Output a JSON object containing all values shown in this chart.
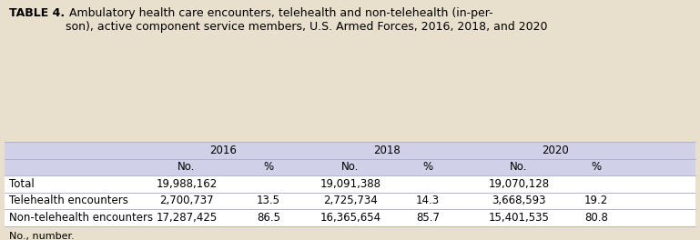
{
  "title_bold": "TABLE 4.",
  "title_rest": " Ambulatory health care encounters, telehealth and non-telehealth (in-per-\nson), active component service members, U.S. Armed Forces, 2016, 2018, and 2020",
  "background_color": "#e8e0cc",
  "table_header_bg": "#d0d0e8",
  "year_headers": [
    "2016",
    "2018",
    "2020"
  ],
  "sub_headers": [
    "No.",
    "%",
    "No.",
    "%",
    "No.",
    "%"
  ],
  "rows": [
    {
      "label": "Total",
      "values": [
        "19,988,162",
        "",
        "19,091,388",
        "",
        "19,070,128",
        ""
      ]
    },
    {
      "label": "Telehealth encounters",
      "values": [
        "2,700,737",
        "13.5",
        "2,725,734",
        "14.3",
        "3,668,593",
        "19.2"
      ]
    },
    {
      "label": "Non-telehealth encounters",
      "values": [
        "17,287,425",
        "86.5",
        "16,365,654",
        "85.7",
        "15,401,535",
        "80.8"
      ]
    }
  ],
  "footnote": "No., number.",
  "font_size_title": 9.0,
  "font_size_table": 8.5,
  "font_size_footnote": 8.0,
  "fig_width": 7.69,
  "fig_height": 2.64,
  "dpi": 100
}
